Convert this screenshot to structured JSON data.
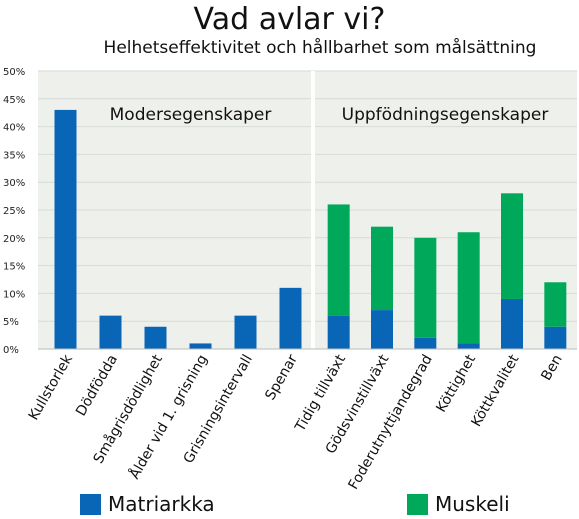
{
  "title": "Vad avlar vi?",
  "subtitle": "Helhetseffektivitet och hållbarhet som målsättning",
  "colors": {
    "matriarkka": "#0966b7",
    "muskeli": "#00a85a",
    "grid": "#d6dbd6",
    "plot_bg": "#eef0ec"
  },
  "chart_data": {
    "type": "bar",
    "stacked": true,
    "title": "Vad avlar vi?",
    "subtitle": "Helhetseffektivitet och hållbarhet som målsättning",
    "ylim": [
      0,
      50
    ],
    "y_ticks": [
      "0%",
      "5%",
      "10%",
      "15%",
      "20%",
      "25%",
      "30%",
      "35%",
      "40%",
      "45%",
      "50%"
    ],
    "grid": true,
    "legend_position": "bottom",
    "groups": [
      {
        "label": "Modersegenskaper",
        "category_count": 6
      },
      {
        "label": "Uppfödningsegenskaper",
        "category_count": 6
      }
    ],
    "categories": [
      "Kullstorlek",
      "Dödfödda",
      "Smågrisdödlighet",
      "Ålder vid 1. grisning",
      "Grisningsintervall",
      "Spenar",
      "Tidig tillväxt",
      "Gödsvinstillväxt",
      "Foderutnyttjandegrad",
      "Köttighet",
      "Köttkvalitet",
      "Ben"
    ],
    "series": [
      {
        "name": "Matriarkka",
        "values": [
          43,
          6,
          4,
          1,
          6,
          11,
          6,
          7,
          2,
          1,
          9,
          4
        ]
      },
      {
        "name": "Muskeli",
        "values": [
          0,
          0,
          0,
          0,
          0,
          0,
          20,
          15,
          18,
          20,
          19,
          8
        ]
      }
    ]
  }
}
